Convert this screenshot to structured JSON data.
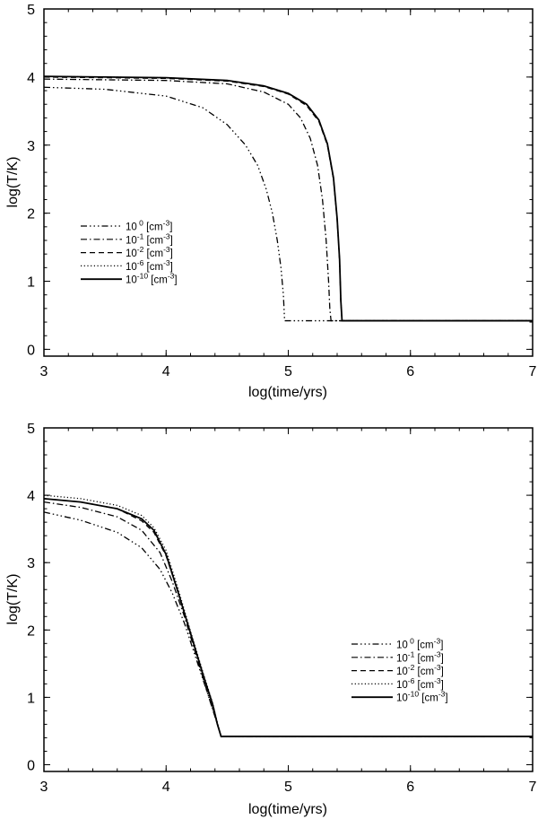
{
  "chart_data": [
    {
      "type": "line",
      "xlabel": "log(time/yrs)",
      "ylabel": "log(T/K)",
      "xlim": [
        3,
        7
      ],
      "ylim": [
        -0.1,
        5
      ],
      "xticks": [
        "3",
        "4",
        "5",
        "6",
        "7"
      ],
      "yticks": [
        "0",
        "1",
        "2",
        "3",
        "4",
        "5"
      ],
      "legend_position": "middle-left",
      "series": [
        {
          "name": "10 0 [cm-3]",
          "base": "10",
          "exp": " 0",
          "unit": "cm",
          "unit_exp": "-3",
          "style": "dash-dot-dot-dot",
          "x": [
            3.0,
            3.5,
            4.0,
            4.3,
            4.5,
            4.65,
            4.75,
            4.82,
            4.87,
            4.91,
            4.94,
            4.96,
            4.97,
            5.3,
            6.0,
            7.0
          ],
          "y": [
            3.85,
            3.82,
            3.72,
            3.55,
            3.3,
            3.0,
            2.7,
            2.35,
            2.0,
            1.6,
            1.2,
            0.8,
            0.42,
            0.42,
            0.42,
            0.42
          ]
        },
        {
          "name": "10-1 [cm-3]",
          "base": "10",
          "exp": "-1",
          "unit": "cm",
          "unit_exp": "-3",
          "style": "dash-dot",
          "x": [
            3.0,
            4.0,
            4.5,
            4.8,
            5.0,
            5.1,
            5.18,
            5.24,
            5.28,
            5.31,
            5.33,
            5.34,
            5.35,
            6.0,
            7.0
          ],
          "y": [
            3.97,
            3.95,
            3.9,
            3.78,
            3.6,
            3.4,
            3.1,
            2.7,
            2.2,
            1.6,
            1.0,
            0.6,
            0.42,
            0.42,
            0.42
          ]
        },
        {
          "name": "10-2 [cm-3]",
          "base": "10",
          "exp": "-2",
          "unit": "cm",
          "unit_exp": "-3",
          "style": "dashed",
          "x": [
            3.0,
            4.0,
            4.5,
            4.8,
            5.0,
            5.15,
            5.25,
            5.32,
            5.37,
            5.4,
            5.42,
            5.43,
            5.44,
            6.0,
            7.0
          ],
          "y": [
            4.0,
            3.98,
            3.94,
            3.86,
            3.75,
            3.58,
            3.35,
            3.0,
            2.5,
            1.9,
            1.3,
            0.7,
            0.42,
            0.42,
            0.42
          ]
        },
        {
          "name": "10-6 [cm-3]",
          "base": "10",
          "exp": "-6",
          "unit": "cm",
          "unit_exp": "-3",
          "style": "dotted",
          "x": [
            3.0,
            4.0,
            4.5,
            4.8,
            5.0,
            5.15,
            5.25,
            5.32,
            5.37,
            5.4,
            5.42,
            5.43,
            5.44,
            6.0,
            7.0
          ],
          "y": [
            4.01,
            3.99,
            3.95,
            3.87,
            3.76,
            3.6,
            3.37,
            3.02,
            2.52,
            1.92,
            1.32,
            0.72,
            0.42,
            0.42,
            0.42
          ]
        },
        {
          "name": "10-10 [cm-3]",
          "base": "10",
          "exp": "-10",
          "unit": "cm",
          "unit_exp": "-3",
          "style": "solid",
          "x": [
            3.0,
            4.0,
            4.5,
            4.8,
            5.0,
            5.15,
            5.25,
            5.32,
            5.37,
            5.4,
            5.42,
            5.43,
            5.44,
            6.0,
            7.0
          ],
          "y": [
            4.01,
            3.99,
            3.95,
            3.87,
            3.76,
            3.6,
            3.37,
            3.02,
            2.52,
            1.92,
            1.32,
            0.72,
            0.42,
            0.42,
            0.42
          ]
        }
      ]
    },
    {
      "type": "line",
      "xlabel": "log(time/yrs)",
      "ylabel": "log(T/K)",
      "xlim": [
        3,
        7
      ],
      "ylim": [
        -0.1,
        5
      ],
      "xticks": [
        "3",
        "4",
        "5",
        "6",
        "7"
      ],
      "yticks": [
        "0",
        "1",
        "2",
        "3",
        "4",
        "5"
      ],
      "legend_position": "right",
      "series": [
        {
          "name": "10 0 [cm-3]",
          "base": "10",
          "exp": " 0",
          "unit": "cm",
          "unit_exp": "-3",
          "style": "dash-dot-dot-dot",
          "x": [
            3.0,
            3.3,
            3.6,
            3.8,
            3.95,
            4.05,
            4.15,
            4.25,
            4.35,
            4.42,
            4.45,
            5.0,
            6.0,
            7.0
          ],
          "y": [
            3.75,
            3.63,
            3.45,
            3.22,
            2.9,
            2.55,
            2.1,
            1.55,
            1.0,
            0.6,
            0.42,
            0.42,
            0.42,
            0.42
          ]
        },
        {
          "name": "10-1 [cm-3]",
          "base": "10",
          "exp": "-1",
          "unit": "cm",
          "unit_exp": "-3",
          "style": "dash-dot",
          "x": [
            3.0,
            3.3,
            3.6,
            3.8,
            3.95,
            4.05,
            4.15,
            4.25,
            4.35,
            4.42,
            4.45,
            5.0,
            6.0,
            7.0
          ],
          "y": [
            3.9,
            3.82,
            3.68,
            3.48,
            3.15,
            2.72,
            2.2,
            1.6,
            1.0,
            0.6,
            0.42,
            0.42,
            0.42,
            0.42
          ]
        },
        {
          "name": "10-2 [cm-3]",
          "base": "10",
          "exp": "-2",
          "unit": "cm",
          "unit_exp": "-3",
          "style": "dashed",
          "x": [
            3.0,
            3.3,
            3.6,
            3.8,
            3.9,
            4.0,
            4.1,
            4.2,
            4.3,
            4.38,
            4.42,
            4.45,
            5.0,
            6.0,
            7.0
          ],
          "y": [
            3.95,
            3.9,
            3.8,
            3.62,
            3.45,
            3.1,
            2.55,
            1.95,
            1.35,
            0.9,
            0.6,
            0.42,
            0.42,
            0.42,
            0.42
          ]
        },
        {
          "name": "10-6 [cm-3]",
          "base": "10",
          "exp": "-6",
          "unit": "cm",
          "unit_exp": "-3",
          "style": "dotted",
          "x": [
            3.0,
            3.3,
            3.6,
            3.8,
            3.9,
            4.0,
            4.1,
            4.2,
            4.3,
            4.38,
            4.42,
            4.45,
            5.0,
            6.0,
            7.0
          ],
          "y": [
            4.0,
            3.95,
            3.85,
            3.7,
            3.52,
            3.18,
            2.6,
            1.98,
            1.38,
            0.92,
            0.62,
            0.42,
            0.42,
            0.42,
            0.42
          ]
        },
        {
          "name": "10-10 [cm-3]",
          "base": "10",
          "exp": "-10",
          "unit": "cm",
          "unit_exp": "-3",
          "style": "solid",
          "x": [
            3.0,
            3.3,
            3.6,
            3.8,
            3.9,
            4.0,
            4.1,
            4.2,
            4.3,
            4.38,
            4.42,
            4.45,
            5.0,
            6.0,
            7.0
          ],
          "y": [
            3.95,
            3.9,
            3.8,
            3.65,
            3.48,
            3.12,
            2.55,
            1.95,
            1.35,
            0.9,
            0.6,
            0.42,
            0.42,
            0.42,
            0.42
          ]
        }
      ]
    }
  ]
}
